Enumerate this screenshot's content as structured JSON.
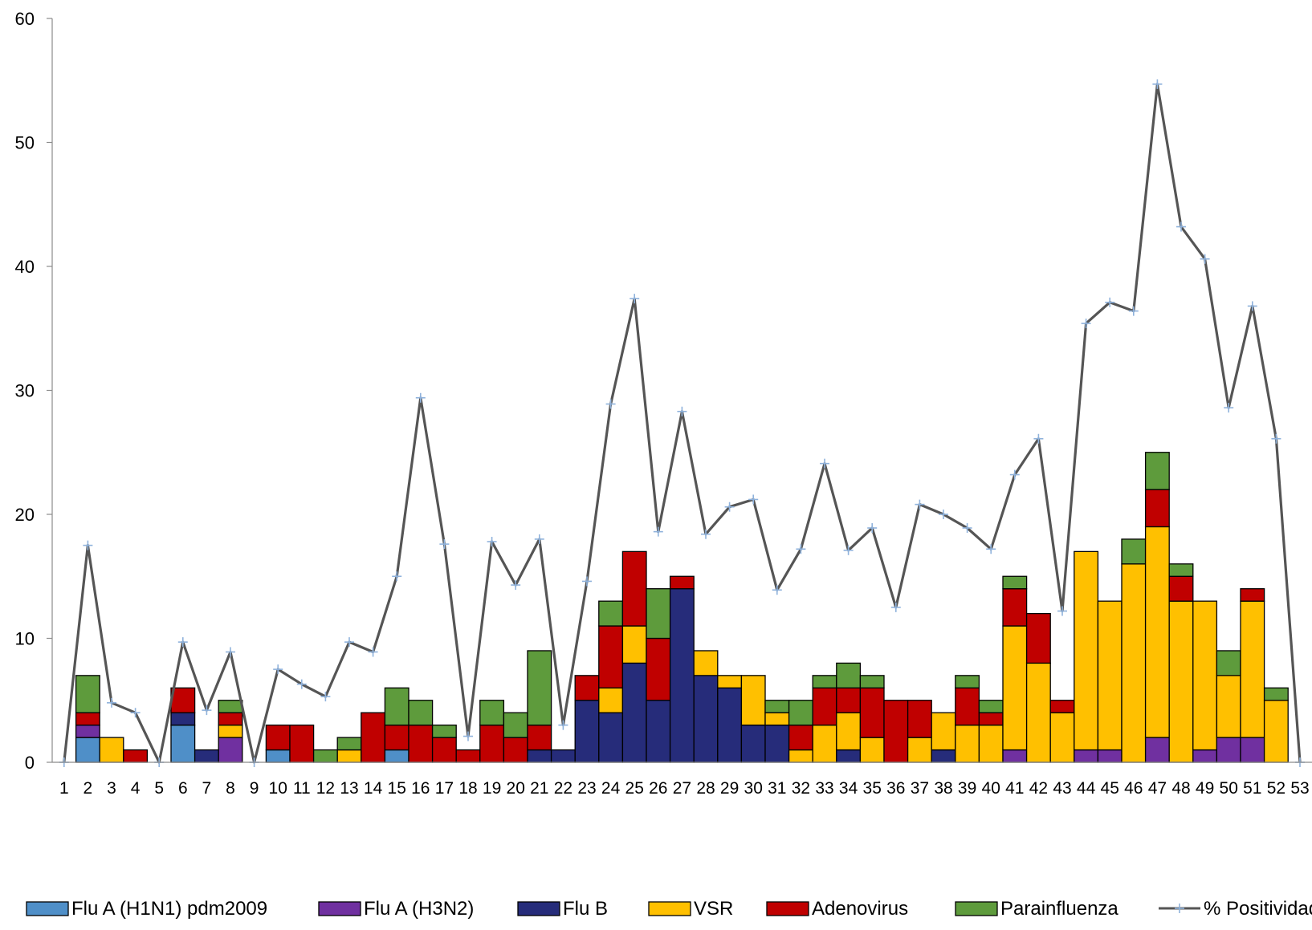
{
  "chart_data": {
    "type": "bar",
    "stacked": true,
    "title": "",
    "xlabel": "",
    "ylabel": "",
    "ylim": [
      0,
      60
    ],
    "y_ticks": [
      0,
      10,
      20,
      30,
      40,
      50,
      60
    ],
    "grid": false,
    "legend_position": "bottom",
    "categories": [
      "1",
      "2",
      "3",
      "4",
      "5",
      "6",
      "7",
      "8",
      "9",
      "10",
      "11",
      "12",
      "13",
      "14",
      "15",
      "16",
      "17",
      "18",
      "19",
      "20",
      "21",
      "22",
      "23",
      "24",
      "25",
      "26",
      "27",
      "28",
      "29",
      "30",
      "31",
      "32",
      "33",
      "34",
      "35",
      "36",
      "37",
      "38",
      "39",
      "40",
      "41",
      "42",
      "43",
      "44",
      "45",
      "46",
      "47",
      "48",
      "49",
      "50",
      "51",
      "52",
      "53"
    ],
    "series": [
      {
        "name": "Flu A (H1N1) pdm2009",
        "color": "#4f8fc8",
        "values": [
          0,
          2,
          0,
          0,
          0,
          3,
          0,
          0,
          0,
          1,
          0,
          0,
          0,
          0,
          1,
          0,
          0,
          0,
          0,
          0,
          0,
          0,
          0,
          0,
          0,
          0,
          0,
          0,
          0,
          0,
          0,
          0,
          0,
          0,
          0,
          0,
          0,
          0,
          0,
          0,
          0,
          0,
          0,
          0,
          0,
          0,
          0,
          0,
          0,
          0,
          0,
          0,
          0
        ]
      },
      {
        "name": "Flu A (H3N2)",
        "color": "#7030a0",
        "values": [
          0,
          1,
          0,
          0,
          0,
          0,
          0,
          2,
          0,
          0,
          0,
          0,
          0,
          0,
          0,
          0,
          0,
          0,
          0,
          0,
          0,
          0,
          0,
          0,
          0,
          0,
          0,
          0,
          0,
          0,
          0,
          0,
          0,
          0,
          0,
          0,
          0,
          0,
          0,
          0,
          1,
          0,
          0,
          1,
          1,
          0,
          2,
          0,
          1,
          2,
          2,
          0,
          0
        ]
      },
      {
        "name": "Flu B",
        "color": "#262c7a",
        "values": [
          0,
          0,
          0,
          0,
          0,
          1,
          1,
          0,
          0,
          0,
          0,
          0,
          0,
          0,
          0,
          0,
          0,
          0,
          0,
          0,
          1,
          1,
          5,
          4,
          8,
          5,
          14,
          7,
          6,
          3,
          3,
          0,
          0,
          1,
          0,
          0,
          0,
          1,
          0,
          0,
          0,
          0,
          0,
          0,
          0,
          0,
          0,
          0,
          0,
          0,
          0,
          0,
          0
        ]
      },
      {
        "name": "VSR",
        "color": "#ffc000",
        "values": [
          0,
          0,
          2,
          0,
          0,
          0,
          0,
          1,
          0,
          0,
          0,
          0,
          1,
          0,
          0,
          0,
          0,
          0,
          0,
          0,
          0,
          0,
          0,
          2,
          3,
          0,
          0,
          2,
          1,
          4,
          1,
          1,
          3,
          3,
          2,
          0,
          2,
          3,
          3,
          3,
          10,
          8,
          4,
          16,
          12,
          16,
          17,
          13,
          12,
          5,
          11,
          5,
          0
        ]
      },
      {
        "name": "Adenovirus",
        "color": "#c00000",
        "values": [
          0,
          1,
          0,
          1,
          0,
          2,
          0,
          1,
          0,
          2,
          3,
          0,
          0,
          4,
          2,
          3,
          2,
          1,
          3,
          2,
          2,
          0,
          2,
          5,
          6,
          5,
          1,
          0,
          0,
          0,
          0,
          2,
          3,
          2,
          4,
          5,
          3,
          0,
          3,
          1,
          3,
          4,
          1,
          0,
          0,
          0,
          3,
          2,
          0,
          0,
          1,
          0,
          0
        ]
      },
      {
        "name": "Parainfluenza",
        "color": "#5e9b3c",
        "values": [
          0,
          3,
          0,
          0,
          0,
          0,
          0,
          1,
          0,
          0,
          0,
          1,
          1,
          0,
          3,
          2,
          1,
          0,
          2,
          2,
          6,
          0,
          0,
          2,
          0,
          4,
          0,
          0,
          0,
          0,
          1,
          2,
          1,
          2,
          1,
          0,
          0,
          0,
          1,
          1,
          1,
          0,
          0,
          0,
          0,
          2,
          3,
          1,
          0,
          2,
          0,
          1,
          0
        ]
      }
    ],
    "line_series": {
      "name": "% Positividad",
      "color": "#555555",
      "marker_color": "#8fb2dc",
      "values": [
        0,
        17.5,
        4.8,
        4.0,
        0,
        9.7,
        4.2,
        8.9,
        0,
        7.5,
        6.3,
        5.3,
        9.7,
        8.9,
        15.0,
        29.4,
        17.6,
        2.1,
        17.8,
        14.3,
        18.0,
        3.0,
        14.6,
        28.9,
        37.4,
        18.6,
        28.3,
        18.4,
        20.6,
        21.2,
        13.9,
        17.2,
        24.1,
        17.1,
        18.9,
        12.5,
        20.8,
        20.0,
        18.9,
        17.2,
        23.2,
        26.1,
        12.2,
        35.4,
        37.1,
        36.4,
        54.7,
        43.2,
        40.6,
        28.6,
        36.8,
        26.1,
        0
      ]
    }
  }
}
